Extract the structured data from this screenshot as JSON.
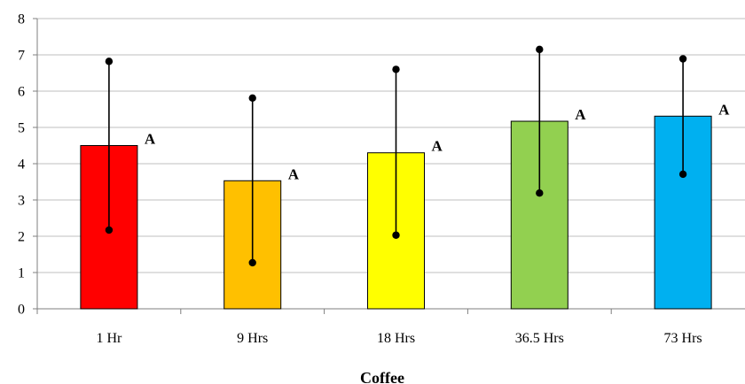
{
  "chart_data": {
    "type": "bar",
    "categories": [
      "1 Hr",
      "9 Hrs",
      "18 Hrs",
      "36.5 Hrs",
      "73 Hrs"
    ],
    "values": [
      4.5,
      3.53,
      4.3,
      5.17,
      5.31
    ],
    "error_upper": [
      6.82,
      5.81,
      6.6,
      7.15,
      6.89
    ],
    "error_lower": [
      2.17,
      1.27,
      2.03,
      3.19,
      3.71
    ],
    "annotations": [
      "A",
      "A",
      "A",
      "A",
      "A"
    ],
    "bar_colors": [
      "#ff0000",
      "#ffc000",
      "#ffff00",
      "#92d050",
      "#00b0f0"
    ],
    "xlabel": "Coffee",
    "ylabel": "",
    "ylim": [
      0,
      8
    ],
    "yticks": [
      "0",
      "1",
      "2",
      "3",
      "4",
      "5",
      "6",
      "7",
      "8"
    ],
    "grid": true,
    "legend": "none"
  }
}
